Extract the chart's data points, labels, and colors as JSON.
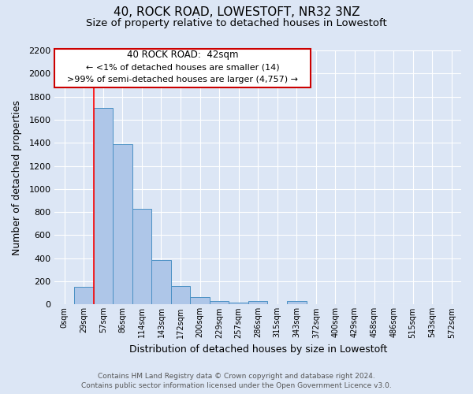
{
  "title": "40, ROCK ROAD, LOWESTOFT, NR32 3NZ",
  "subtitle": "Size of property relative to detached houses in Lowestoft",
  "xlabel": "Distribution of detached houses by size in Lowestoft",
  "ylabel": "Number of detached properties",
  "bar_labels": [
    "0sqm",
    "29sqm",
    "57sqm",
    "86sqm",
    "114sqm",
    "143sqm",
    "172sqm",
    "200sqm",
    "229sqm",
    "257sqm",
    "286sqm",
    "315sqm",
    "343sqm",
    "372sqm",
    "400sqm",
    "429sqm",
    "458sqm",
    "486sqm",
    "515sqm",
    "543sqm",
    "572sqm"
  ],
  "bar_values": [
    5,
    155,
    1700,
    1390,
    830,
    385,
    160,
    65,
    30,
    15,
    30,
    5,
    30,
    5,
    5,
    5,
    5,
    5,
    5,
    5,
    5
  ],
  "bar_color": "#aec6e8",
  "bar_edge_color": "#4a90c4",
  "ylim": [
    0,
    2200
  ],
  "yticks": [
    0,
    200,
    400,
    600,
    800,
    1000,
    1200,
    1400,
    1600,
    1800,
    2000,
    2200
  ],
  "red_line_x": 1.5,
  "annotation_title": "40 ROCK ROAD:  42sqm",
  "annotation_line1": "← <1% of detached houses are smaller (14)",
  "annotation_line2": ">99% of semi-detached houses are larger (4,757) →",
  "annotation_box_color": "#ffffff",
  "annotation_box_edge": "#cc0000",
  "footer_line1": "Contains HM Land Registry data © Crown copyright and database right 2024.",
  "footer_line2": "Contains public sector information licensed under the Open Government Licence v3.0.",
  "background_color": "#dce6f5",
  "plot_background": "#dce6f5",
  "grid_color": "#ffffff",
  "title_fontsize": 11,
  "subtitle_fontsize": 9.5
}
